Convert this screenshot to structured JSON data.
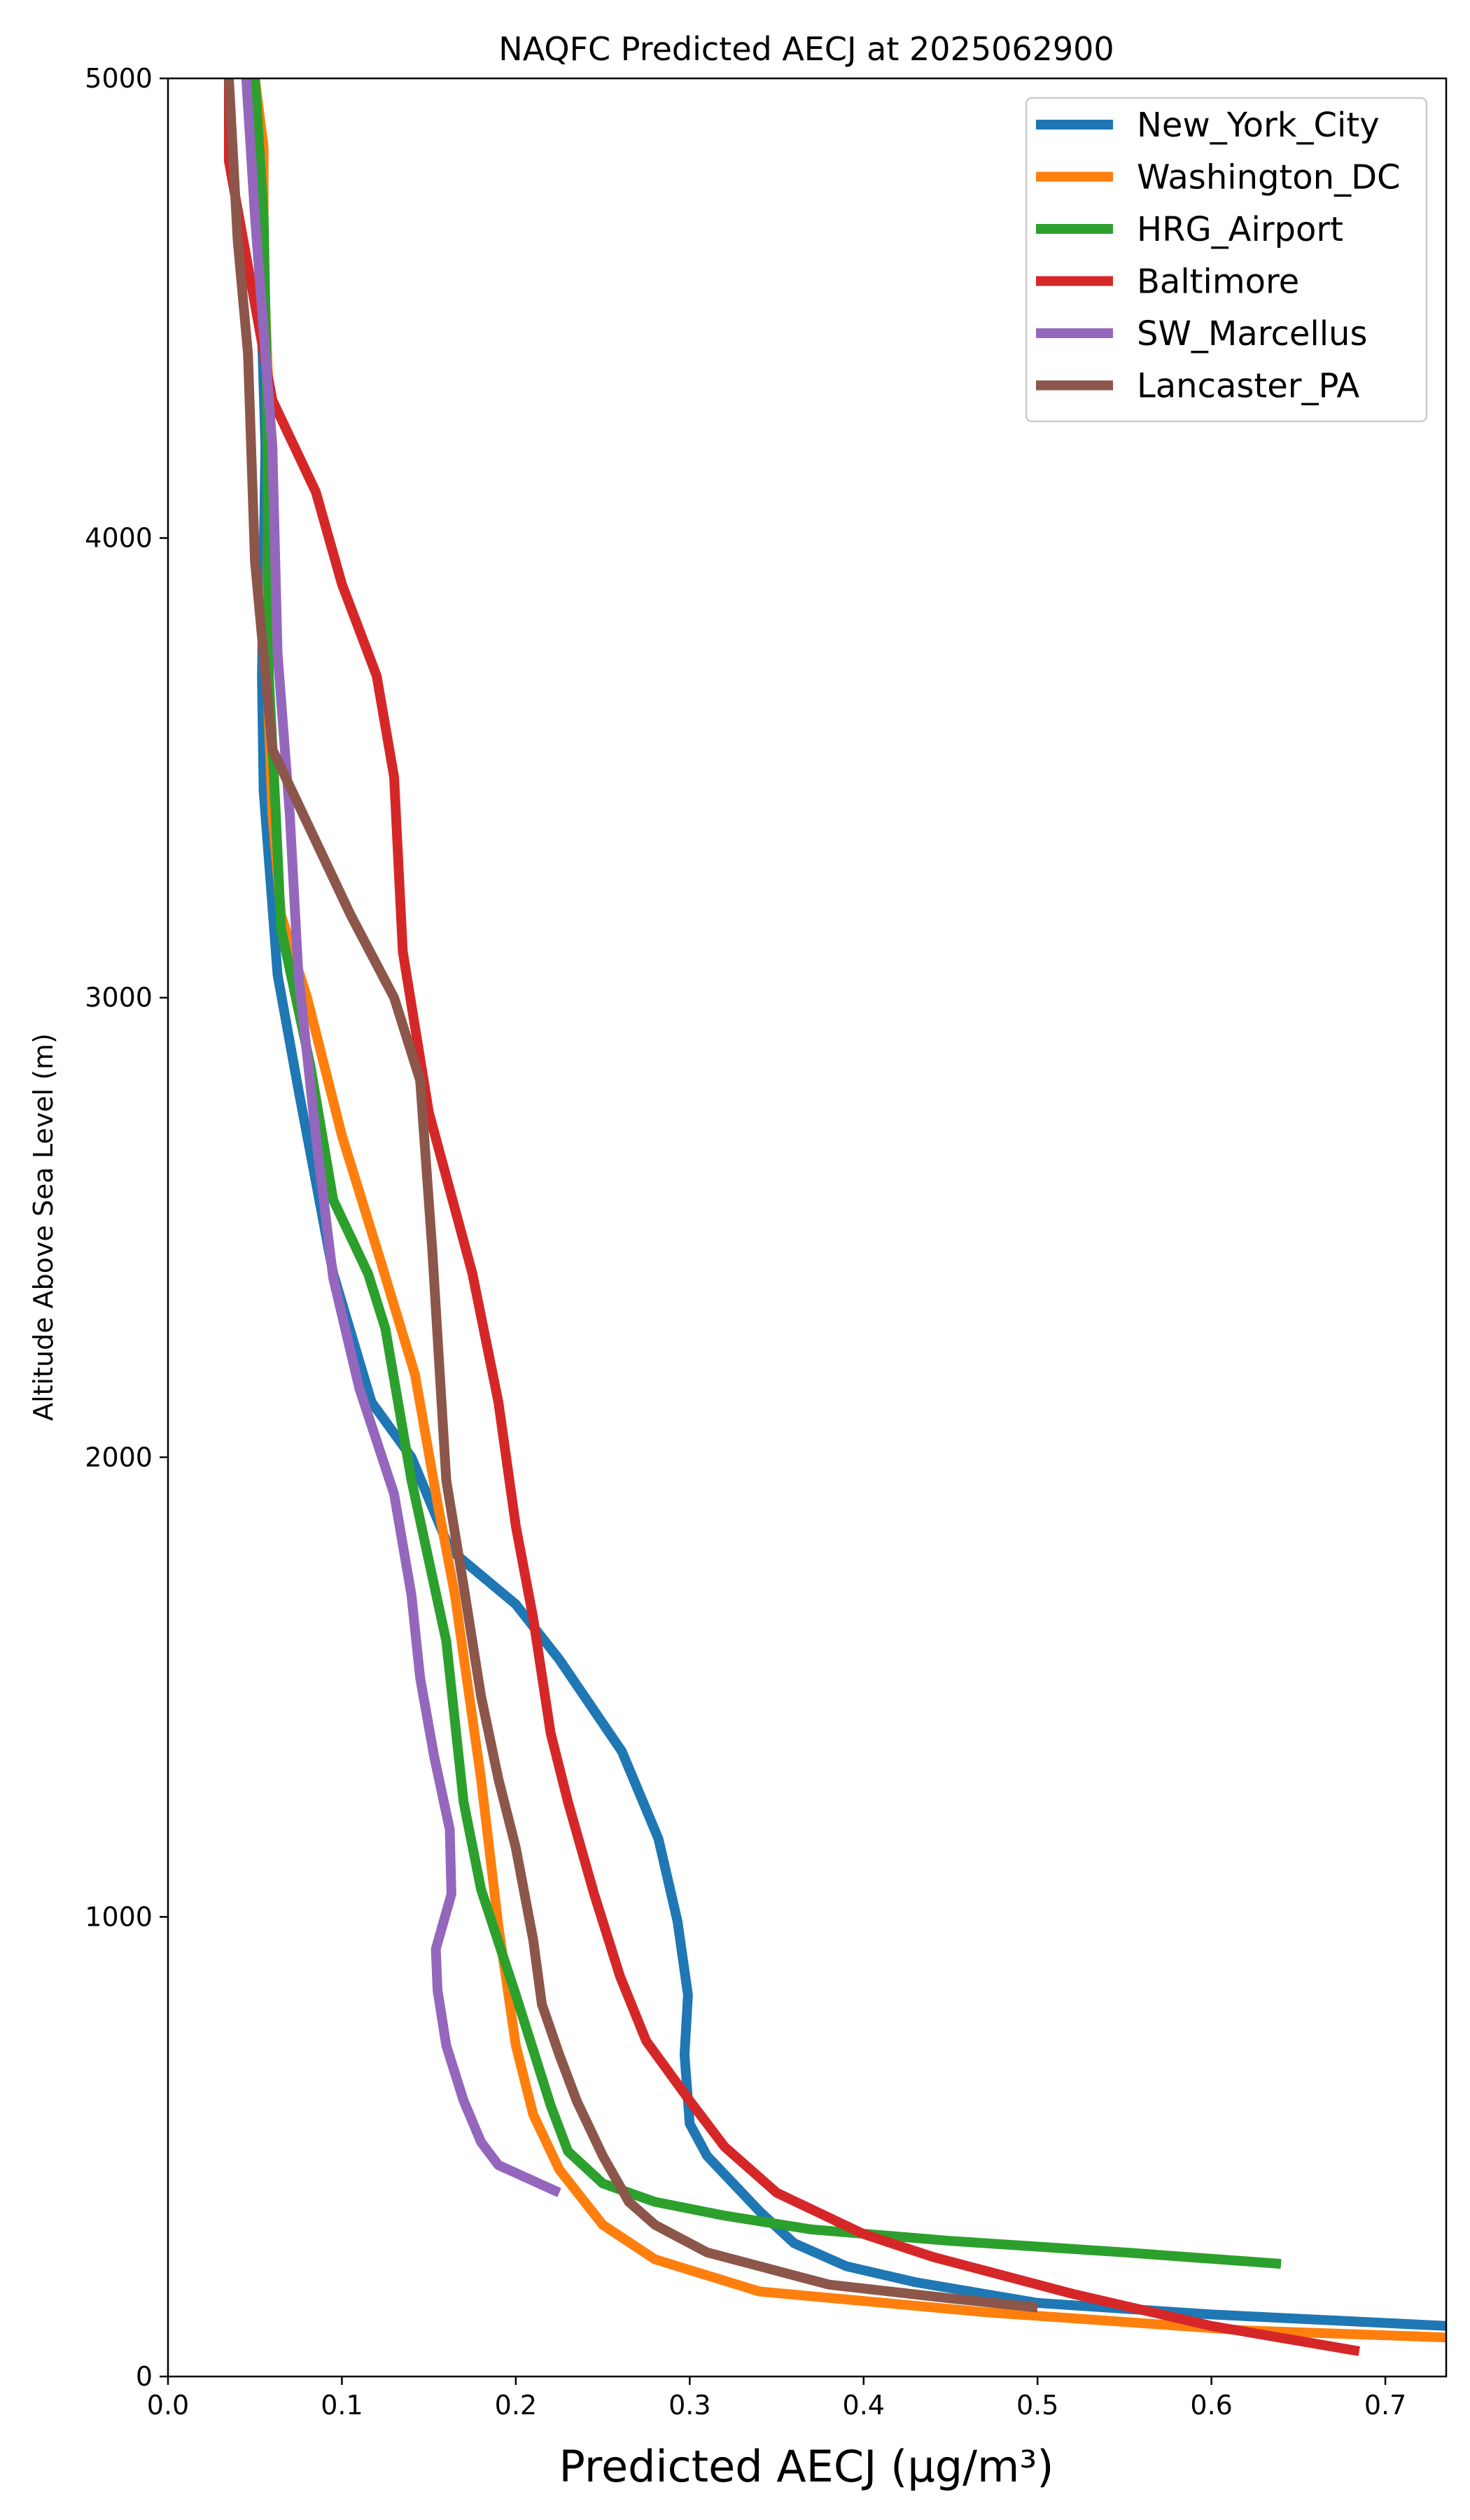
{
  "chart_data": {
    "type": "line",
    "title": "NAQFC Predicted AECJ at 2025062900",
    "xlabel": "Predicted AECJ (μg/m³)",
    "ylabel": "Altitude Above Sea Level (m)",
    "xlim": [
      0,
      0.735
    ],
    "ylim": [
      0,
      5000
    ],
    "xticks": [
      "0.0",
      "0.1",
      "0.2",
      "0.3",
      "0.4",
      "0.5",
      "0.6",
      "0.7"
    ],
    "yticks": [
      "0",
      "1000",
      "2000",
      "3000",
      "4000",
      "5000"
    ],
    "grid": false,
    "legend_position": "top-right",
    "series": [
      {
        "name": "New_York_City",
        "color": "#1f77b4",
        "points": [
          [
            0.735,
            110
          ],
          [
            0.6,
            135
          ],
          [
            0.5,
            160
          ],
          [
            0.43,
            205
          ],
          [
            0.39,
            240
          ],
          [
            0.36,
            290
          ],
          [
            0.34,
            360
          ],
          [
            0.31,
            480
          ],
          [
            0.3,
            550
          ],
          [
            0.297,
            700
          ],
          [
            0.299,
            830
          ],
          [
            0.293,
            990
          ],
          [
            0.282,
            1170
          ],
          [
            0.261,
            1360
          ],
          [
            0.225,
            1560
          ],
          [
            0.2,
            1680
          ],
          [
            0.162,
            1800
          ],
          [
            0.14,
            2000
          ],
          [
            0.117,
            2120
          ],
          [
            0.095,
            2400
          ],
          [
            0.075,
            2800
          ],
          [
            0.063,
            3050
          ],
          [
            0.055,
            3450
          ],
          [
            0.054,
            3700
          ],
          [
            0.056,
            4200
          ],
          [
            0.052,
            4700
          ],
          [
            0.05,
            5000
          ]
        ]
      },
      {
        "name": "Washington_DC",
        "color": "#ff7f0e",
        "points": [
          [
            0.735,
            85
          ],
          [
            0.62,
            100
          ],
          [
            0.47,
            140
          ],
          [
            0.34,
            185
          ],
          [
            0.28,
            255
          ],
          [
            0.25,
            330
          ],
          [
            0.225,
            450
          ],
          [
            0.21,
            570
          ],
          [
            0.2,
            720
          ],
          [
            0.19,
            980
          ],
          [
            0.18,
            1300
          ],
          [
            0.165,
            1700
          ],
          [
            0.155,
            1900
          ],
          [
            0.142,
            2180
          ],
          [
            0.122,
            2430
          ],
          [
            0.1,
            2700
          ],
          [
            0.08,
            3000
          ],
          [
            0.065,
            3180
          ],
          [
            0.06,
            3400
          ],
          [
            0.057,
            3700
          ],
          [
            0.058,
            4300
          ],
          [
            0.055,
            4600
          ],
          [
            0.055,
            4850
          ],
          [
            0.05,
            5000
          ]
        ]
      },
      {
        "name": "HRG_Airport",
        "color": "#2ca02c",
        "points": [
          [
            0.64,
            245
          ],
          [
            0.55,
            270
          ],
          [
            0.45,
            295
          ],
          [
            0.37,
            320
          ],
          [
            0.32,
            350
          ],
          [
            0.28,
            380
          ],
          [
            0.25,
            420
          ],
          [
            0.23,
            490
          ],
          [
            0.22,
            590
          ],
          [
            0.2,
            830
          ],
          [
            0.18,
            1060
          ],
          [
            0.17,
            1250
          ],
          [
            0.16,
            1600
          ],
          [
            0.14,
            1950
          ],
          [
            0.125,
            2280
          ],
          [
            0.115,
            2400
          ],
          [
            0.095,
            2560
          ],
          [
            0.082,
            2850
          ],
          [
            0.065,
            3150
          ],
          [
            0.062,
            3400
          ],
          [
            0.058,
            3700
          ],
          [
            0.057,
            4300
          ],
          [
            0.055,
            4700
          ],
          [
            0.05,
            5000
          ]
        ]
      },
      {
        "name": "Baltimore",
        "color": "#d62728",
        "points": [
          [
            0.685,
            55
          ],
          [
            0.6,
            110
          ],
          [
            0.52,
            180
          ],
          [
            0.44,
            260
          ],
          [
            0.4,
            310
          ],
          [
            0.35,
            400
          ],
          [
            0.32,
            500
          ],
          [
            0.3,
            600
          ],
          [
            0.275,
            730
          ],
          [
            0.26,
            870
          ],
          [
            0.245,
            1050
          ],
          [
            0.23,
            1250
          ],
          [
            0.22,
            1400
          ],
          [
            0.21,
            1650
          ],
          [
            0.2,
            1850
          ],
          [
            0.19,
            2120
          ],
          [
            0.175,
            2400
          ],
          [
            0.15,
            2750
          ],
          [
            0.135,
            3100
          ],
          [
            0.13,
            3480
          ],
          [
            0.12,
            3700
          ],
          [
            0.1,
            3900
          ],
          [
            0.085,
            4100
          ],
          [
            0.06,
            4300
          ],
          [
            0.035,
            4820
          ],
          [
            0.035,
            5000
          ]
        ]
      },
      {
        "name": "SW_Marcellus",
        "color": "#9467bd",
        "points": [
          [
            0.225,
            400
          ],
          [
            0.19,
            460
          ],
          [
            0.18,
            510
          ],
          [
            0.17,
            600
          ],
          [
            0.16,
            720
          ],
          [
            0.155,
            840
          ],
          [
            0.154,
            930
          ],
          [
            0.163,
            1050
          ],
          [
            0.162,
            1190
          ],
          [
            0.153,
            1350
          ],
          [
            0.145,
            1520
          ],
          [
            0.14,
            1700
          ],
          [
            0.13,
            1920
          ],
          [
            0.11,
            2150
          ],
          [
            0.095,
            2390
          ],
          [
            0.085,
            2700
          ],
          [
            0.075,
            3050
          ],
          [
            0.07,
            3400
          ],
          [
            0.063,
            3750
          ],
          [
            0.06,
            4200
          ],
          [
            0.05,
            4700
          ],
          [
            0.045,
            5000
          ]
        ]
      },
      {
        "name": "Lancaster_PA",
        "color": "#8c564b",
        "points": [
          [
            0.5,
            150
          ],
          [
            0.45,
            170
          ],
          [
            0.38,
            200
          ],
          [
            0.34,
            240
          ],
          [
            0.31,
            270
          ],
          [
            0.28,
            330
          ],
          [
            0.265,
            380
          ],
          [
            0.25,
            480
          ],
          [
            0.235,
            600
          ],
          [
            0.225,
            700
          ],
          [
            0.215,
            810
          ],
          [
            0.21,
            950
          ],
          [
            0.2,
            1150
          ],
          [
            0.19,
            1300
          ],
          [
            0.18,
            1480
          ],
          [
            0.17,
            1720
          ],
          [
            0.16,
            1950
          ],
          [
            0.152,
            2450
          ],
          [
            0.145,
            2820
          ],
          [
            0.13,
            3000
          ],
          [
            0.105,
            3180
          ],
          [
            0.06,
            3540
          ],
          [
            0.05,
            3950
          ],
          [
            0.046,
            4400
          ],
          [
            0.04,
            4650
          ],
          [
            0.035,
            5000
          ]
        ]
      }
    ]
  }
}
